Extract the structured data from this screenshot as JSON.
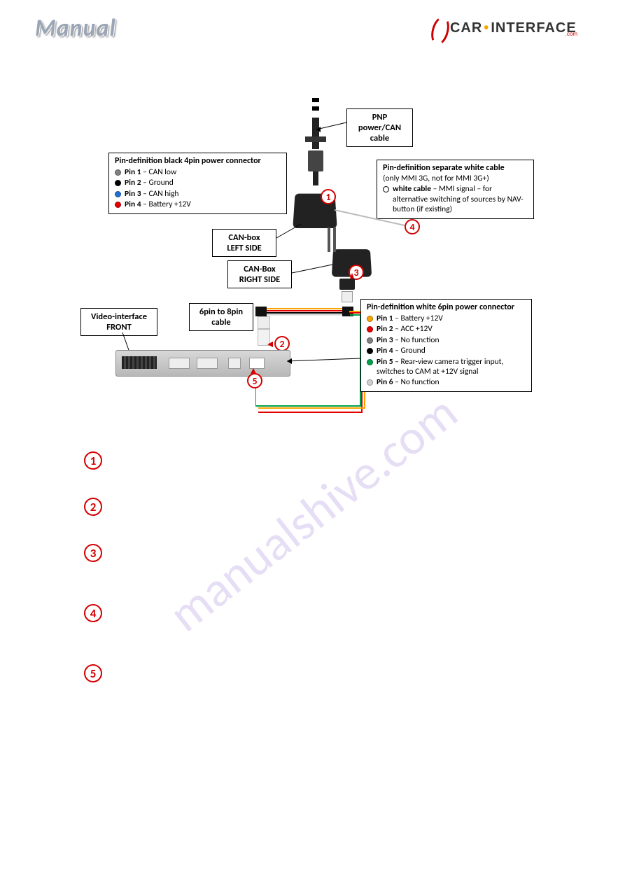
{
  "header": {
    "title": "Manual",
    "logo_a": "CAR",
    "logo_b": "INTERFACE",
    "logo_sub": ".com"
  },
  "watermark": "manualshive.com",
  "labels": {
    "pnp": "PNP power/CAN cable",
    "canbox_left": "CAN-box LEFT SIDE",
    "canbox_right": "CAN-Box RIGHT SIDE",
    "sixpin": "6pin to 8pin cable",
    "vif": "Video-interface FRONT"
  },
  "black4pin": {
    "title": "Pin-definition black 4pin power connector",
    "pins": [
      {
        "color": "#808080",
        "label": "Pin 1",
        "desc": "CAN low"
      },
      {
        "color": "#000000",
        "label": "Pin 2",
        "desc": "Ground"
      },
      {
        "color": "#1f6fd4",
        "label": "Pin 3",
        "desc": "CAN high"
      },
      {
        "color": "#e30000",
        "label": "Pin 4",
        "desc": "Battery +12V"
      }
    ]
  },
  "whitecable": {
    "title": "Pin-definition separate white cable",
    "note1": "(only MMI 3G, not for MMI 3G+)",
    "bold": "white cable",
    "desc": "– MMI signal – for alternative switching of sources by NAV-button (if existing)"
  },
  "white6pin": {
    "title": "Pin-definition white 6pin power connector",
    "pins": [
      {
        "color": "#f7a400",
        "label": "Pin 1",
        "desc": "Battery  +12V"
      },
      {
        "color": "#e30000",
        "label": "Pin 2",
        "desc": "ACC +12V"
      },
      {
        "color": "#808080",
        "label": "Pin 3",
        "desc": "No function"
      },
      {
        "color": "#000000",
        "label": "Pin 4",
        "desc": "Ground"
      },
      {
        "color": "#00a04a",
        "label": "Pin 5",
        "desc": "Rear-view camera trigger input, switches to CAM at +12V signal"
      },
      {
        "color": "#d0d0d0",
        "label": "Pin 6",
        "desc": "No function"
      }
    ]
  },
  "circles": {
    "d1": "1",
    "d2": "2",
    "d3": "3",
    "d4": "4",
    "d5": "5"
  },
  "colors": {
    "ring": "#d40000",
    "wm": "#c9b8ea",
    "wire_green": "#00a04a",
    "wire_orange": "#f7a400",
    "wire_red": "#e30000",
    "wire_black": "#000000",
    "wire_white": "#e8e8e8"
  }
}
